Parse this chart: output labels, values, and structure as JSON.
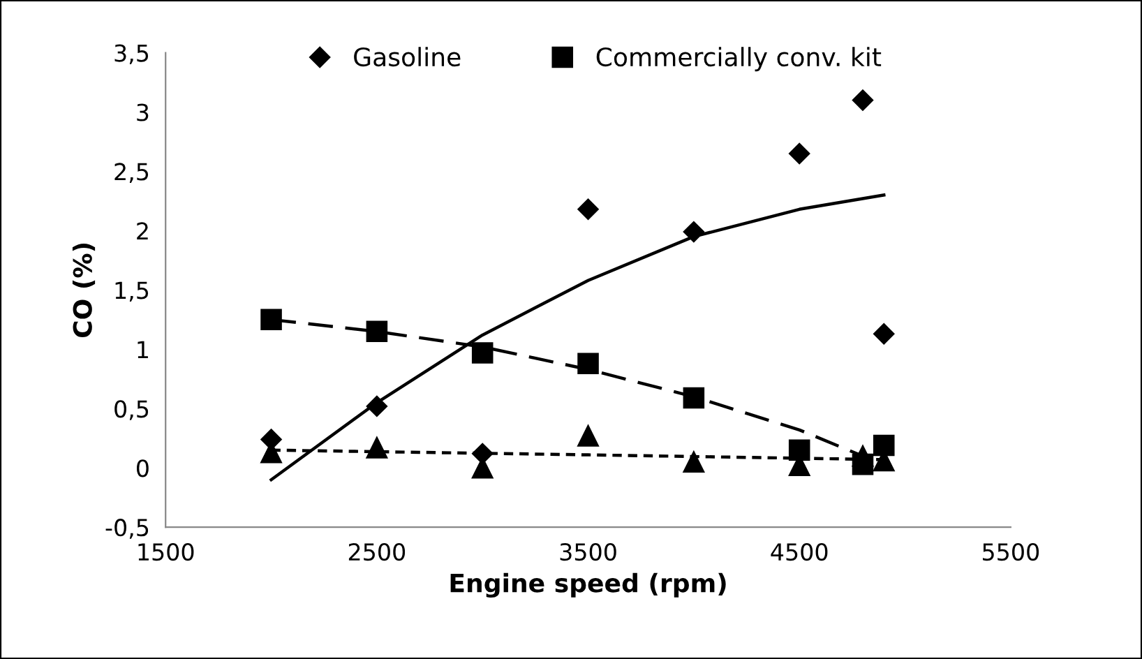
{
  "chart_data": {
    "type": "scatter",
    "xlabel": "Engine speed (rpm)",
    "ylabel": "CO (%)",
    "xlim": [
      1500,
      5500
    ],
    "xticks": [
      1500,
      2500,
      3500,
      4500,
      5500
    ],
    "ylim": [
      -0.5,
      3.5
    ],
    "yticks": [
      {
        "value": -0.5,
        "label": "-0,5"
      },
      0,
      {
        "value": 0.5,
        "label": "0,5"
      },
      1,
      {
        "value": 1.5,
        "label": "1,5"
      },
      2,
      {
        "value": 2.5,
        "label": "2,5"
      },
      3,
      {
        "value": 3.5,
        "label": "3,5"
      }
    ],
    "grid": false,
    "legend": "top",
    "series": [
      {
        "color": "#000000",
        "marker": "triangle",
        "x": [
          2000,
          2500,
          3000,
          3500,
          4000,
          4500,
          4800,
          4900
        ],
        "values": [
          0.13,
          0.17,
          0,
          0.27,
          0.05,
          0.02,
          0.1,
          0.06
        ]
      },
      {
        "name": "Gasoline",
        "color": "#000000",
        "marker": "diamond",
        "x": [
          2000,
          2500,
          3000,
          3500,
          4000,
          4500,
          4800,
          4900
        ],
        "values": [
          0.24,
          0.52,
          0.12,
          2.18,
          1.99,
          2.65,
          3.1,
          1.13
        ]
      },
      {
        "name": "Commercially conv. kit",
        "color": "#000000",
        "marker": "square",
        "x": [
          2000,
          2500,
          3000,
          3500,
          4000,
          4500,
          4800,
          4900
        ],
        "values": [
          1.25,
          1.15,
          0.97,
          0.88,
          0.59,
          0.15,
          0.03,
          0.19
        ]
      },
      {
        "type": "line",
        "color": "#000000",
        "line_style": "solid",
        "marker": "none",
        "x": [
          2000,
          2500,
          3000,
          3500,
          4000,
          4500,
          4900
        ],
        "values": [
          -0.1,
          0.55,
          1.12,
          1.58,
          1.95,
          2.18,
          2.3
        ]
      },
      {
        "type": "line",
        "color": "#000000",
        "line_style": "dashed",
        "marker": "none",
        "x": [
          2000,
          2500,
          3000,
          3500,
          4000,
          4500,
          4800
        ],
        "values": [
          1.25,
          1.15,
          1.02,
          0.83,
          0.6,
          0.32,
          0.1
        ]
      },
      {
        "type": "line",
        "color": "#000000",
        "line_style": "dotted",
        "marker": "none",
        "x": [
          2000,
          3500,
          4900
        ],
        "values": [
          0.15,
          0.11,
          0.07
        ]
      }
    ]
  }
}
